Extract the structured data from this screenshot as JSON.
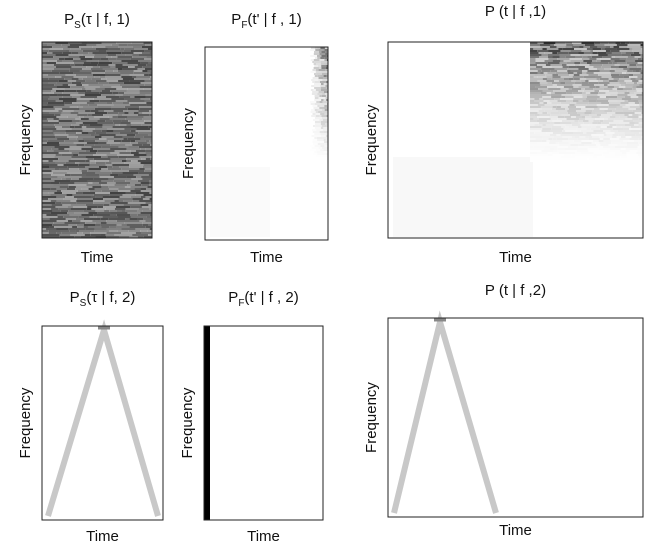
{
  "panels": [
    {
      "title": {
        "base": "P",
        "sub": "S",
        "args": "(τ | f, 1)"
      },
      "xlabel": "Time",
      "ylabel": "Frequency"
    },
    {
      "title": {
        "base": "P",
        "sub": "F",
        "args": "(t' | f , 1)"
      },
      "xlabel": "Time",
      "ylabel": "Frequency"
    },
    {
      "title": {
        "base": "P",
        "sub": null,
        "args": " (t | f ,1)"
      },
      "xlabel": "Time",
      "ylabel": "Frequency"
    },
    {
      "title": {
        "base": "P",
        "sub": "S",
        "args": "(τ | f, 2)"
      },
      "xlabel": "Time",
      "ylabel": "Frequency"
    },
    {
      "title": {
        "base": "P",
        "sub": "F",
        "args": "(t' | f , 2)"
      },
      "xlabel": "Time",
      "ylabel": "Frequency"
    },
    {
      "title": {
        "base": "P",
        "sub": null,
        "args": " (t | f ,2)"
      },
      "xlabel": "Time",
      "ylabel": "Frequency"
    }
  ]
}
